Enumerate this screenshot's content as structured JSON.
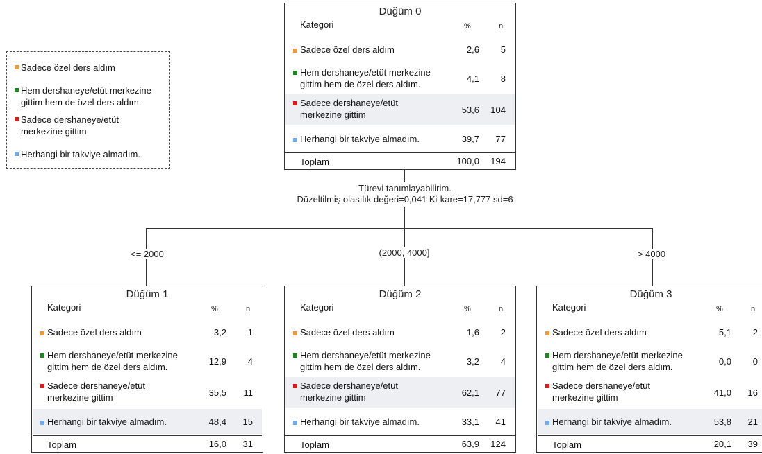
{
  "colors": {
    "orange": "#f29a3b",
    "green": "#1a8a1a",
    "red": "#e01818",
    "blue": "#6faaf0"
  },
  "legend": {
    "items": [
      {
        "label_line1": "Sadece özel ders aldım",
        "label_line2": "",
        "color": "orange"
      },
      {
        "label_line1": "Hem dershaneye/etüt  merkezine",
        "label_line2": "gittim hem de özel ders aldım.",
        "color": "green"
      },
      {
        "label_line1": "Sadece dershaneye/etüt",
        "label_line2": "merkezine gittim",
        "color": "red"
      },
      {
        "label_line1": "Herhangi bir takviye almadım.",
        "label_line2": "",
        "color": "blue"
      }
    ]
  },
  "headers": {
    "category": "Kategori",
    "pct": "%",
    "n": "n",
    "total": "Toplam"
  },
  "nodes": [
    {
      "title": "Düğüm 0",
      "rows": [
        {
          "l1": "Sadece özel ders aldım",
          "l2": "",
          "pct": "2,6",
          "n": "5"
        },
        {
          "l1": "Hem dershaneye/etüt  merkezine",
          "l2": "gittim hem de özel ders aldım.",
          "pct": "4,1",
          "n": "8"
        },
        {
          "l1": "Sadece dershaneye/etüt",
          "l2": "merkezine gittim",
          "pct": "53,6",
          "n": "104"
        },
        {
          "l1": "Herhangi bir takviye almadım.",
          "l2": "",
          "pct": "39,7",
          "n": "77"
        }
      ],
      "total_pct": "100,0",
      "total_n": "194",
      "shaded_row": 2
    },
    {
      "title": "Düğüm 1",
      "rows": [
        {
          "l1": "Sadece özel ders aldım",
          "l2": "",
          "pct": "3,2",
          "n": "1"
        },
        {
          "l1": "Hem dershaneye/etüt  merkezine",
          "l2": "gittim hem de özel ders aldım.",
          "pct": "12,9",
          "n": "4"
        },
        {
          "l1": "Sadece dershaneye/etüt",
          "l2": "merkezine gittim",
          "pct": "35,5",
          "n": "11"
        },
        {
          "l1": "Herhangi bir takviye almadım.",
          "l2": "",
          "pct": "48,4",
          "n": "15"
        }
      ],
      "total_pct": "16,0",
      "total_n": "31",
      "shaded_row": 3
    },
    {
      "title": "Düğüm 2",
      "rows": [
        {
          "l1": "Sadece özel ders aldım",
          "l2": "",
          "pct": "1,6",
          "n": "2"
        },
        {
          "l1": "Hem dershaneye/etüt  merkezine",
          "l2": "gittim hem de özel ders aldım.",
          "pct": "3,2",
          "n": "4"
        },
        {
          "l1": "Sadece dershaneye/etüt",
          "l2": "merkezine gittim",
          "pct": "62,1",
          "n": "77"
        },
        {
          "l1": "Herhangi bir takviye almadım.",
          "l2": "",
          "pct": "33,1",
          "n": "41"
        }
      ],
      "total_pct": "63,9",
      "total_n": "124",
      "shaded_row": 2
    },
    {
      "title": "Düğüm 3",
      "rows": [
        {
          "l1": "Sadece özel ders aldım",
          "l2": "",
          "pct": "5,1",
          "n": "2"
        },
        {
          "l1": "Hem dershaneye/etüt  merkezine",
          "l2": "gittim hem de özel ders aldım.",
          "pct": "0,0",
          "n": "0"
        },
        {
          "l1": "Sadece dershaneye/etüt",
          "l2": "merkezine gittim",
          "pct": "41,0",
          "n": "16"
        },
        {
          "l1": "Herhangi bir takviye almadım.",
          "l2": "",
          "pct": "53,8",
          "n": "21"
        }
      ],
      "total_pct": "20,1",
      "total_n": "39",
      "shaded_row": 3
    }
  ],
  "split": {
    "line1": "Türevi tanımlayabilirim.",
    "line2": "Düzeltilmiş olasılık değeri=0,041  Ki-kare=17,777  sd=6"
  },
  "branches": [
    "<= 2000",
    "(2000, 4000]",
    "> 4000"
  ]
}
